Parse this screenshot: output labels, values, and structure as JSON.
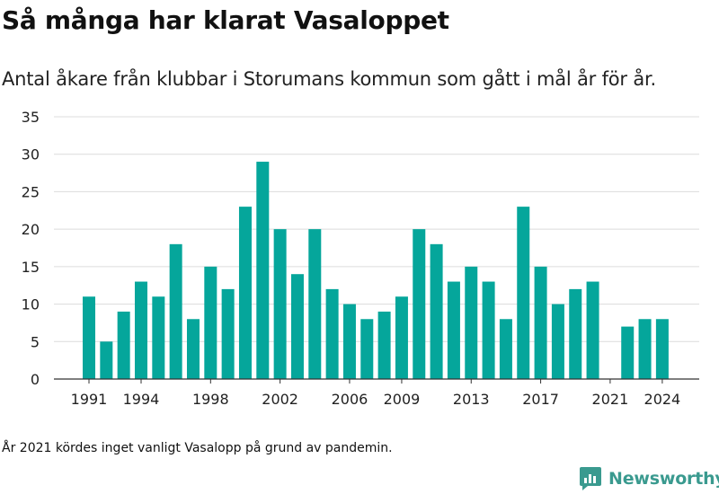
{
  "header": {
    "title": "Så många har klarat Vasaloppet",
    "subtitle": "Antal åkare från klubbar i Storumans kommun som gått i mål år för år."
  },
  "footnote": "År 2021 kördes inget vanligt Vasalopp på grund av pandemin.",
  "brand": {
    "name": "Newsworthy",
    "icon": "newsworthy-logo-icon",
    "color": "#3a9a8f"
  },
  "chart_data": {
    "type": "bar",
    "title": "Så många har klarat Vasaloppet",
    "subtitle": "Antal åkare från klubbar i Storumans kommun som gått i mål år för år.",
    "xlabel": "",
    "ylabel": "",
    "ylim": [
      0,
      35
    ],
    "yticks": [
      0,
      5,
      10,
      15,
      20,
      25,
      30,
      35
    ],
    "xticks": [
      1991,
      1994,
      1998,
      2002,
      2006,
      2009,
      2013,
      2017,
      2021,
      2024
    ],
    "grid": true,
    "bar_color": "#05a69b",
    "categories": [
      1991,
      1992,
      1993,
      1994,
      1995,
      1996,
      1997,
      1998,
      1999,
      2000,
      2001,
      2002,
      2003,
      2004,
      2005,
      2006,
      2007,
      2008,
      2009,
      2010,
      2011,
      2012,
      2013,
      2014,
      2015,
      2016,
      2017,
      2018,
      2019,
      2020,
      2021,
      2022,
      2023,
      2024
    ],
    "values": [
      11,
      5,
      9,
      13,
      11,
      18,
      8,
      15,
      12,
      23,
      29,
      20,
      14,
      20,
      12,
      10,
      8,
      9,
      11,
      20,
      18,
      13,
      15,
      13,
      8,
      23,
      15,
      10,
      12,
      13,
      null,
      7,
      8,
      8
    ]
  }
}
